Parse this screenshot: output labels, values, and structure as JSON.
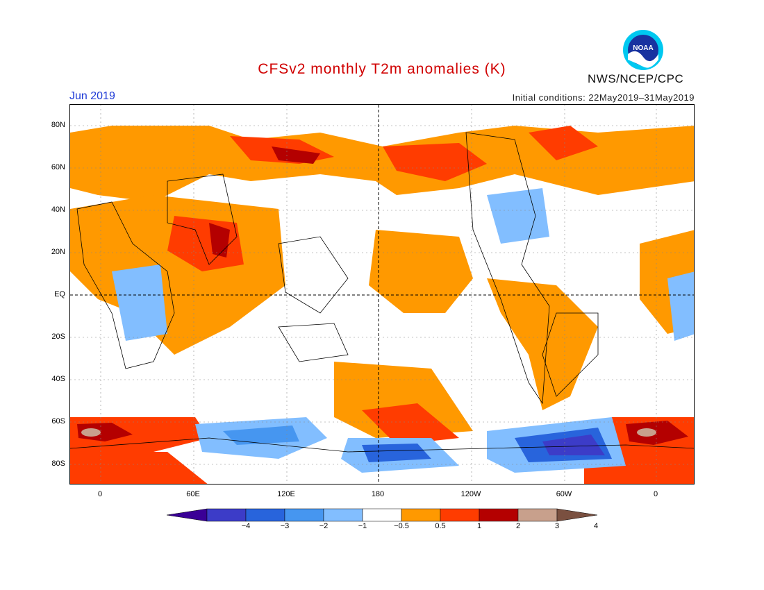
{
  "header": {
    "title": "CFSv2 monthly T2m anomalies (K)",
    "month": "Jun 2019",
    "initial_conditions": "Initial conditions: 22May2019–31May2019",
    "agency": "NWS/NCEP/CPC",
    "logo_icon": "noaa-logo-icon",
    "logo_text": "NOAA"
  },
  "colors": {
    "title": "#d00000",
    "month": "#1e3ad6",
    "ocean": "#ffffff",
    "coast": "#000000"
  },
  "map": {
    "projection": "equirectangular, centered near 150E",
    "lat_labels": [
      "80N",
      "60N",
      "40N",
      "20N",
      "EQ",
      "20S",
      "40S",
      "60S",
      "80S"
    ],
    "lon_labels": [
      "0",
      "60E",
      "120E",
      "180",
      "120W",
      "60W",
      "0"
    ]
  },
  "legend": {
    "labels": [
      "−4",
      "−3",
      "−2",
      "−1",
      "−0.5",
      "0.5",
      "1",
      "2",
      "3",
      "4"
    ],
    "colors": [
      "#3a0096",
      "#3c3cc8",
      "#2864dc",
      "#4696f0",
      "#82beff",
      "#ffffff",
      "#ff9900",
      "#ff3c00",
      "#b40000",
      "#c8a08c",
      "#7a5040"
    ]
  }
}
